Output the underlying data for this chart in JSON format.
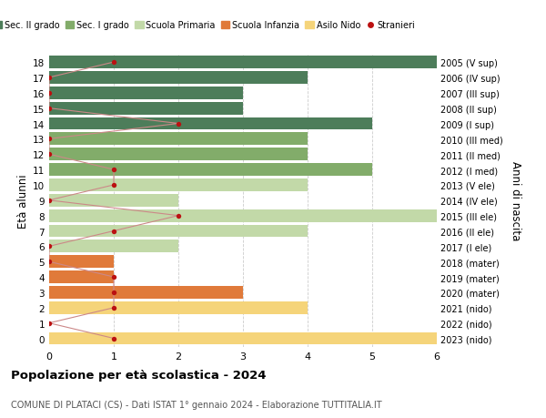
{
  "ages": [
    18,
    17,
    16,
    15,
    14,
    13,
    12,
    11,
    10,
    9,
    8,
    7,
    6,
    5,
    4,
    3,
    2,
    1,
    0
  ],
  "years": [
    "2005 (V sup)",
    "2006 (IV sup)",
    "2007 (III sup)",
    "2008 (II sup)",
    "2009 (I sup)",
    "2010 (III med)",
    "2011 (II med)",
    "2012 (I med)",
    "2013 (V ele)",
    "2014 (IV ele)",
    "2015 (III ele)",
    "2016 (II ele)",
    "2017 (I ele)",
    "2018 (mater)",
    "2019 (mater)",
    "2020 (mater)",
    "2021 (nido)",
    "2022 (nido)",
    "2023 (nido)"
  ],
  "bar_values": [
    6,
    4,
    3,
    3,
    5,
    4,
    4,
    5,
    4,
    2,
    6,
    4,
    2,
    1,
    1,
    3,
    4,
    0,
    6
  ],
  "bar_colors": [
    "#4d7d5a",
    "#4d7d5a",
    "#4d7d5a",
    "#4d7d5a",
    "#4d7d5a",
    "#82ac6a",
    "#82ac6a",
    "#82ac6a",
    "#c2d9a8",
    "#c2d9a8",
    "#c2d9a8",
    "#c2d9a8",
    "#c2d9a8",
    "#e07a3a",
    "#e07a3a",
    "#e07a3a",
    "#f5d47a",
    "#f5d47a",
    "#f5d47a"
  ],
  "stranieri_values": [
    1,
    0,
    0,
    0,
    2,
    0,
    0,
    1,
    1,
    0,
    2,
    1,
    0,
    0,
    1,
    1,
    1,
    0,
    1
  ],
  "stranieri_color": "#bb1111",
  "stranieri_line_color": "#cc8888",
  "legend_labels": [
    "Sec. II grado",
    "Sec. I grado",
    "Scuola Primaria",
    "Scuola Infanzia",
    "Asilo Nido",
    "Stranieri"
  ],
  "legend_colors": [
    "#4d7d5a",
    "#82ac6a",
    "#c2d9a8",
    "#e07a3a",
    "#f5d47a",
    "#bb1111"
  ],
  "title": "Popolazione per età scolastica - 2024",
  "subtitle": "COMUNE DI PLATACI (CS) - Dati ISTAT 1° gennaio 2024 - Elaborazione TUTTITALIA.IT",
  "ylabel_left": "Età alunni",
  "ylabel_right": "Anni di nascita",
  "xlim": [
    0,
    6
  ],
  "background_color": "#ffffff",
  "grid_color": "#cccccc",
  "bar_height": 0.82
}
